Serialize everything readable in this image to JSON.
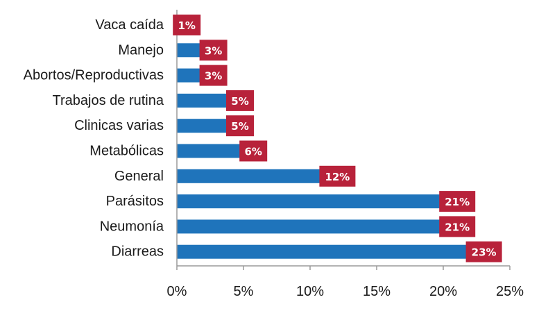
{
  "chart_data": {
    "type": "bar",
    "orientation": "horizontal",
    "categories": [
      "Vaca caída",
      "Manejo",
      "Abortos/Reproductivas",
      "Trabajos de rutina",
      "Clinicas varias",
      "Metabólicas",
      "General",
      "Parásitos",
      "Neumonía",
      "Diarreas"
    ],
    "values": [
      1,
      3,
      3,
      5,
      5,
      6,
      12,
      21,
      21,
      23
    ],
    "data_labels": [
      "1%",
      "3%",
      "3%",
      "5%",
      "5%",
      "6%",
      "12%",
      "21%",
      "21%",
      "23%"
    ],
    "x_ticks": [
      0,
      5,
      10,
      15,
      20,
      25
    ],
    "x_tick_labels": [
      "0%",
      "5%",
      "10%",
      "15%",
      "20%",
      "25%"
    ],
    "xlim": [
      0,
      25
    ],
    "title": "",
    "xlabel": "",
    "ylabel": "",
    "grid": false,
    "legend": "none",
    "colors": {
      "bar": "#1f74bb",
      "label_box": "#b8223a",
      "axis": "#9a9a9a"
    }
  }
}
